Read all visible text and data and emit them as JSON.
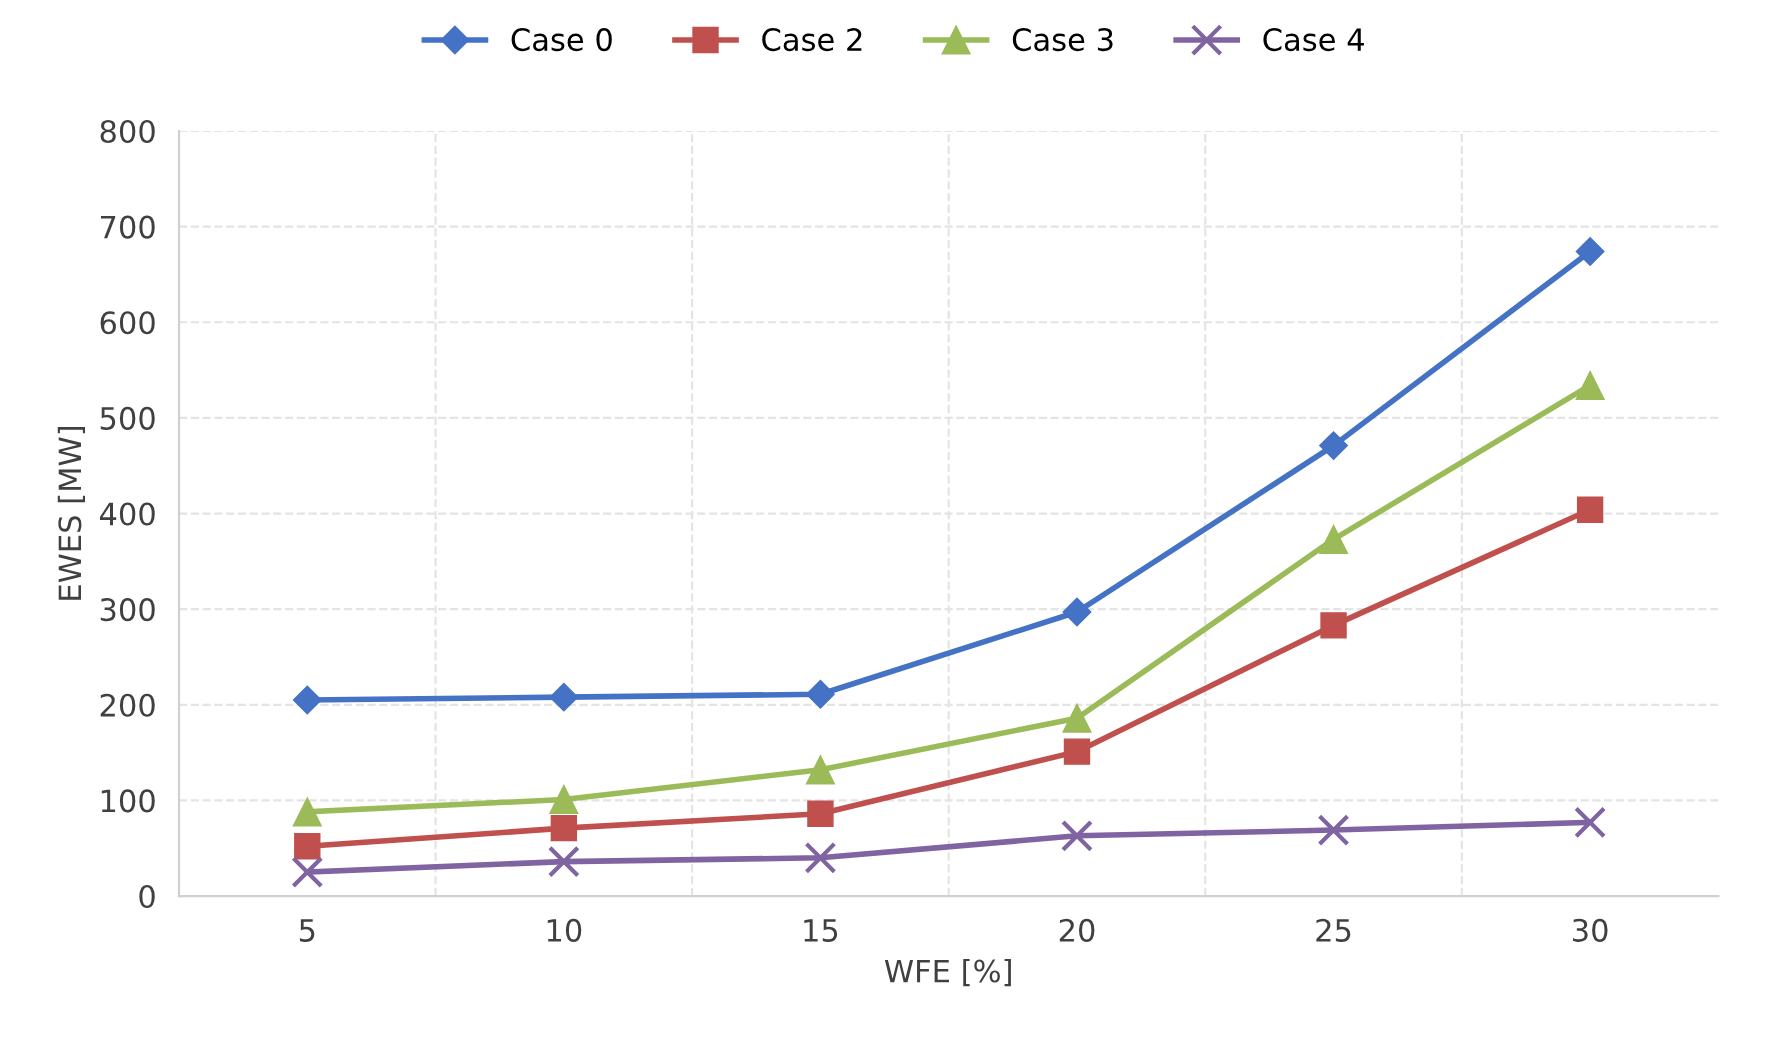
{
  "chart_data": {
    "type": "line",
    "xlabel": "WFE [%]",
    "ylabel": "EWES [MW]",
    "categories": [
      "5",
      "10",
      "15",
      "20",
      "25",
      "30"
    ],
    "series": [
      {
        "name": "Case 0",
        "color": "#4472c4",
        "marker": "diamond",
        "values": [
          205,
          208,
          211,
          297,
          471,
          674
        ]
      },
      {
        "name": "Case 2",
        "color": "#c0504d",
        "marker": "square",
        "values": [
          52,
          71,
          86,
          151,
          283,
          404
        ]
      },
      {
        "name": "Case 3",
        "color": "#9bbb59",
        "marker": "triangle",
        "values": [
          88,
          101,
          132,
          186,
          373,
          534
        ]
      },
      {
        "name": "Case 4",
        "color": "#8064a2",
        "marker": "cross",
        "values": [
          25,
          36,
          40,
          63,
          69,
          77
        ]
      }
    ],
    "ylim": [
      0,
      800
    ],
    "yticks": [
      0,
      100,
      200,
      300,
      400,
      500,
      600,
      700,
      800
    ],
    "grid": true,
    "legend": "top",
    "line_style": "solid"
  }
}
